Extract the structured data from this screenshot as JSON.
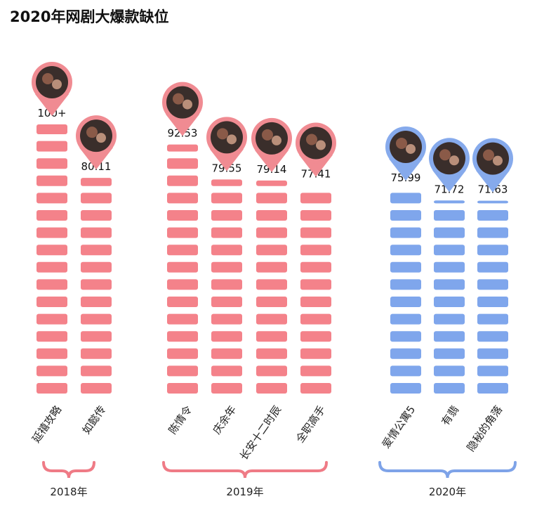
{
  "chart_data": {
    "type": "bar",
    "title": "2020年网剧大爆款缺位",
    "ylim": [
      0,
      100
    ],
    "bars": [
      {
        "category": "延禧攻略",
        "label": "100+",
        "value": 100,
        "year": "2018年",
        "color": "pink"
      },
      {
        "category": "如懿传",
        "label": "80.11",
        "value": 80.11,
        "year": "2018年",
        "color": "pink"
      },
      {
        "category": "陈情令",
        "label": "92.53",
        "value": 92.53,
        "year": "2019年",
        "color": "pink"
      },
      {
        "category": "庆余年",
        "label": "79.55",
        "value": 79.55,
        "year": "2019年",
        "color": "pink"
      },
      {
        "category": "长安十二时辰",
        "label": "79.14",
        "value": 79.14,
        "year": "2019年",
        "color": "pink"
      },
      {
        "category": "全职高手",
        "label": "77.41",
        "value": 77.41,
        "year": "2019年",
        "color": "pink"
      },
      {
        "category": "爱情公寓5",
        "label": "75.99",
        "value": 75.99,
        "year": "2020年",
        "color": "blue"
      },
      {
        "category": "有翡",
        "label": "71.72",
        "value": 71.72,
        "year": "2020年",
        "color": "blue"
      },
      {
        "category": "隐秘的角落",
        "label": "71.63",
        "value": 71.63,
        "year": "2020年",
        "color": "blue"
      }
    ],
    "groups": [
      "2018年",
      "2019年",
      "2020年"
    ]
  },
  "colors": {
    "pink": "#f4828a",
    "pink_pin": "#f08b92",
    "blue": "#7fa6ec",
    "blue_pin": "#86aaec",
    "pink_brace": "#ef7b86",
    "blue_brace": "#7ea3e8"
  },
  "icons": [
    "show-poster-avatar-icon"
  ]
}
